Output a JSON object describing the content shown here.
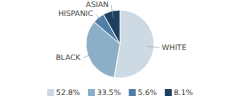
{
  "chart_data": {
    "type": "pie",
    "categories": [
      "WHITE",
      "BLACK",
      "HISPANIC",
      "ASIAN"
    ],
    "values": [
      52.8,
      33.5,
      5.6,
      8.1
    ],
    "value_labels": [
      "52.8%",
      "33.5%",
      "5.6%",
      "8.1%"
    ],
    "colors": [
      "#cdd9e3",
      "#8bafc6",
      "#4d7ea8",
      "#1e4060"
    ],
    "legend": "bottom"
  }
}
